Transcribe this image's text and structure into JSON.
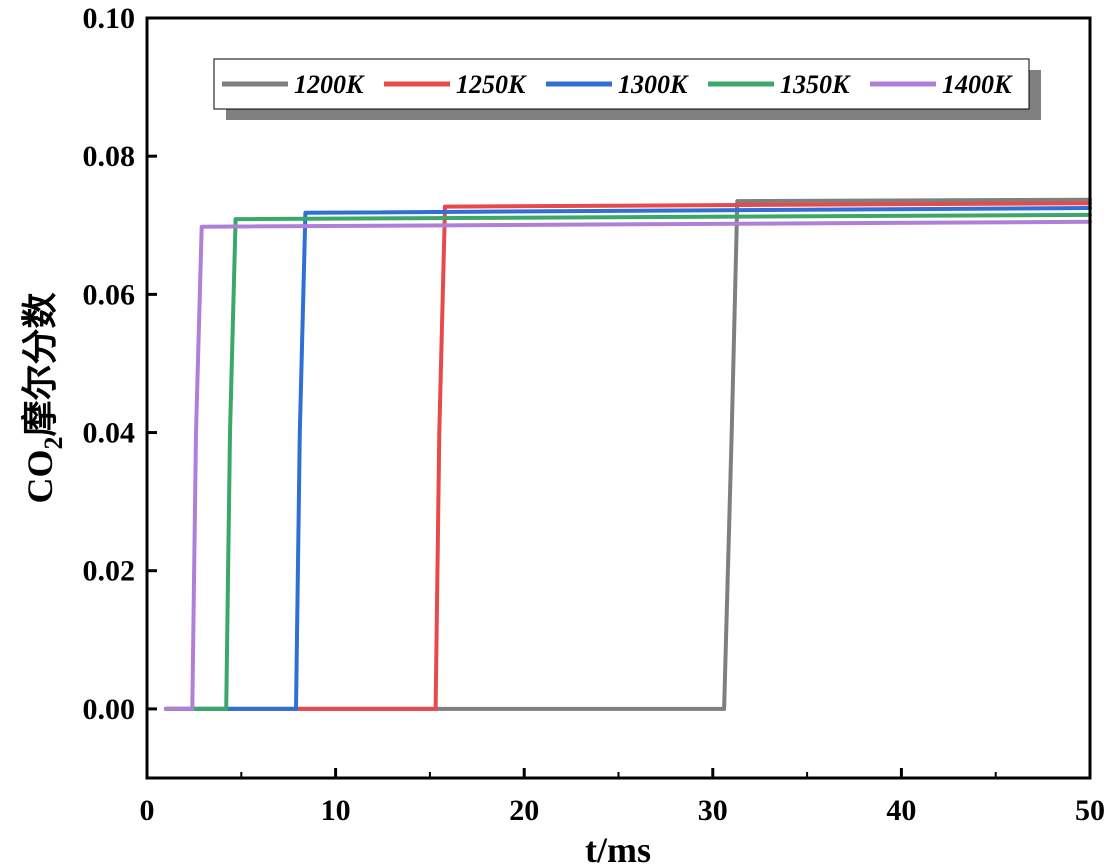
{
  "chart_data": {
    "type": "line",
    "xlabel": "t/ms",
    "ylabel_main": "CO",
    "ylabel_sub": "2",
    "ylabel_rest": "摩尔分数",
    "xlim": [
      0,
      50
    ],
    "ylim": [
      -0.01,
      0.1
    ],
    "xticks": [
      0,
      10,
      20,
      30,
      40,
      50
    ],
    "xtick_labels": [
      "0",
      "10",
      "20",
      "30",
      "40",
      "50"
    ],
    "yticks": [
      0.0,
      0.02,
      0.04,
      0.06,
      0.08,
      0.1
    ],
    "ytick_labels": [
      "0.00",
      "0.02",
      "0.04",
      "0.06",
      "0.08",
      "0.10"
    ],
    "grid": false,
    "legend_position": "top",
    "series": [
      {
        "name": "1200K",
        "color": "#7f7f7f",
        "x": [
          1,
          30.6,
          31.0,
          31.3,
          50
        ],
        "y": [
          0.0,
          0.0,
          0.04,
          0.0735,
          0.0737
        ]
      },
      {
        "name": "1250K",
        "color": "#e84a4a",
        "x": [
          1,
          15.3,
          15.5,
          15.8,
          50
        ],
        "y": [
          0.0,
          0.0,
          0.04,
          0.0727,
          0.0732
        ]
      },
      {
        "name": "1300K",
        "color": "#2f6fd6",
        "x": [
          1,
          7.9,
          8.1,
          8.4,
          50
        ],
        "y": [
          0.0,
          0.0,
          0.04,
          0.0718,
          0.0725
        ]
      },
      {
        "name": "1350K",
        "color": "#3aa868",
        "x": [
          1,
          4.2,
          4.4,
          4.7,
          50
        ],
        "y": [
          0.0,
          0.0,
          0.04,
          0.0709,
          0.0715
        ]
      },
      {
        "name": "1400K",
        "color": "#b07fd8",
        "x": [
          1,
          2.4,
          2.6,
          2.9,
          50
        ],
        "y": [
          0.0,
          0.0,
          0.04,
          0.0698,
          0.0705
        ]
      }
    ]
  }
}
